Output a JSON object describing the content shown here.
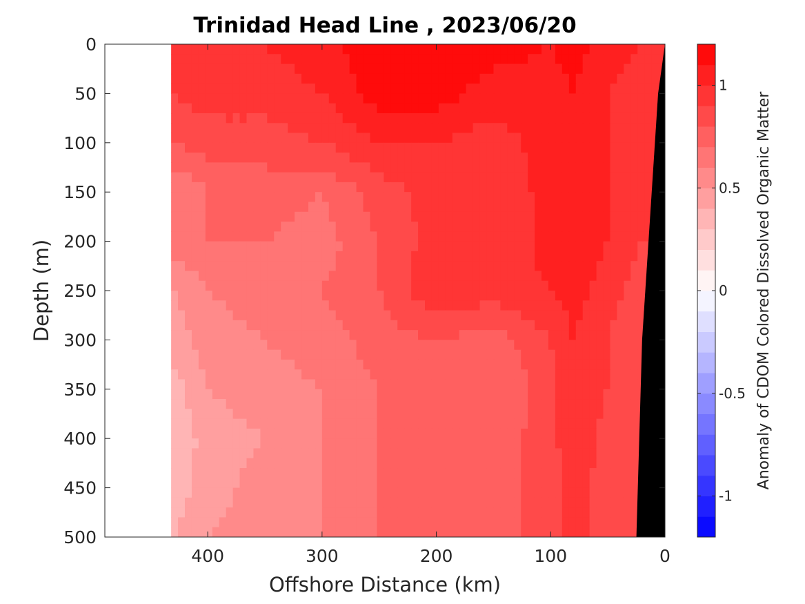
{
  "chart_data": {
    "type": "heatmap",
    "title": "Trinidad Head Line , 2023/06/20",
    "xlabel": "Offshore Distance (km)",
    "ylabel": "Depth (m)",
    "xlim": [
      490,
      0
    ],
    "ylim": [
      0,
      500
    ],
    "x_ticks": [
      "400",
      "300",
      "200",
      "100",
      "0"
    ],
    "x_tick_values": [
      400,
      300,
      200,
      100,
      0
    ],
    "y_ticks": [
      "0",
      "50",
      "100",
      "150",
      "200",
      "250",
      "300",
      "350",
      "400",
      "450",
      "500"
    ],
    "y_tick_values": [
      0,
      50,
      100,
      150,
      200,
      250,
      300,
      350,
      400,
      450,
      500
    ],
    "colorbar": {
      "label": "Anomaly of CDOM Colored Dissolved Organic Matter",
      "range": [
        -1.2,
        1.2
      ],
      "ticks": [
        "1",
        "0.5",
        "0",
        "-0.5",
        "-1"
      ],
      "tick_values": [
        1,
        0.5,
        0,
        -0.5,
        -1
      ],
      "levels": 24,
      "colormap": "blue-white-red"
    },
    "data_extent_km": [
      0,
      432
    ],
    "distance_km": [
      430,
      400,
      350,
      300,
      250,
      200,
      150,
      100,
      80,
      50,
      20
    ],
    "depth_m": [
      0,
      50,
      100,
      150,
      200,
      250,
      300,
      350,
      400,
      450,
      500
    ],
    "anomaly": [
      [
        0.95,
        0.95,
        1.0,
        1.05,
        1.2,
        1.2,
        1.15,
        1.1,
        1.15,
        1.05,
        1.0
      ],
      [
        0.9,
        0.95,
        0.95,
        1.0,
        1.15,
        1.15,
        1.05,
        1.05,
        1.1,
        1.0,
        0.95
      ],
      [
        0.8,
        0.85,
        0.85,
        0.9,
        1.0,
        1.0,
        0.95,
        1.05,
        1.1,
        1.0,
        0.95
      ],
      [
        0.6,
        0.7,
        0.75,
        0.7,
        0.85,
        0.95,
        0.9,
        1.05,
        1.1,
        1.0,
        0.9
      ],
      [
        0.65,
        0.7,
        0.7,
        0.65,
        0.8,
        0.95,
        0.9,
        1.05,
        1.1,
        1.0,
        0.9
      ],
      [
        0.5,
        0.6,
        0.65,
        0.7,
        0.8,
        1.0,
        0.95,
        1.0,
        1.05,
        0.95,
        0.85
      ],
      [
        0.45,
        0.55,
        0.6,
        0.65,
        0.75,
        0.8,
        0.75,
        0.9,
        1.0,
        0.9,
        0.8
      ],
      [
        0.35,
        0.5,
        0.55,
        0.6,
        0.7,
        0.8,
        0.7,
        0.85,
        1.0,
        0.9,
        0.8
      ],
      [
        0.3,
        0.45,
        0.5,
        0.6,
        0.7,
        0.8,
        0.75,
        0.85,
        1.0,
        0.85,
        0.8
      ],
      [
        0.35,
        0.45,
        0.55,
        0.6,
        0.7,
        0.8,
        0.75,
        0.85,
        0.95,
        0.85,
        0.8
      ],
      [
        0.4,
        0.5,
        0.55,
        0.6,
        0.7,
        0.8,
        0.75,
        0.85,
        0.95,
        0.85,
        0.8
      ]
    ],
    "bathymetry": {
      "fill": "#000000",
      "bottom_distance_km": [
        0,
        6,
        20,
        25
      ],
      "bottom_depth_m": [
        0,
        50,
        300,
        500
      ]
    }
  }
}
